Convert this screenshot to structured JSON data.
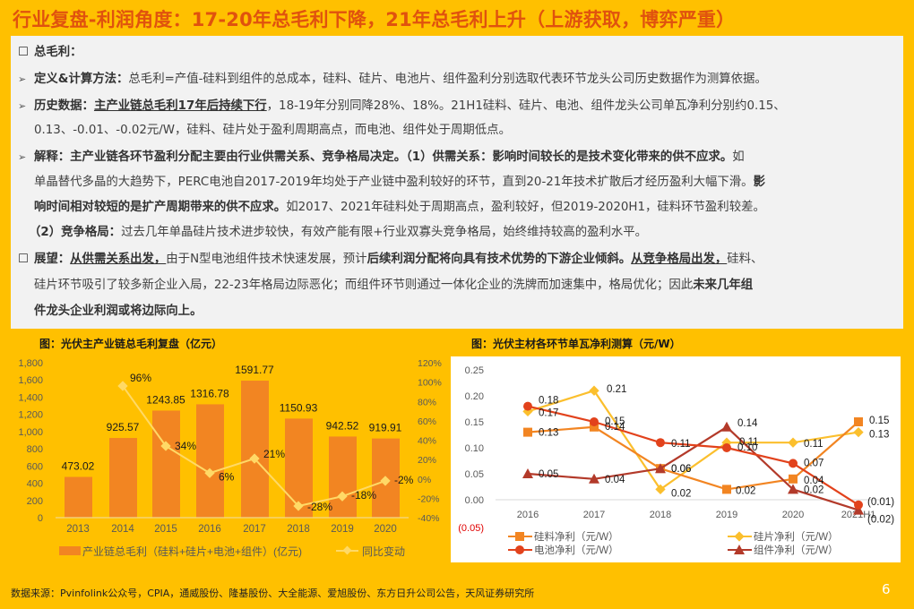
{
  "title": "行业复盘-利润角度：17-20年总毛利下降，21年总毛利上升（上游获取，博弈严重）",
  "panel": {
    "heading_mark": "☐",
    "heading": "总毛利：",
    "p1": {
      "label": "定义&计算方法：",
      "text": "总毛利=产值-硅料到组件的总成本，硅料、硅片、电池片、组件盈利分别选取代表环节龙头公司历史数据作为测算依据。"
    },
    "p2": {
      "label": "历史数据：",
      "underline": "主产业链总毛利17年后持续下行",
      "text1": "，18-19年分别同降28%、18%。21H1硅料、硅片、电池、组件龙头公司单瓦净利分别约0.15、",
      "text2": "0.13、-0.01、-0.02元/W，硅料、硅片处于盈利周期高点，而电池、组件处于周期低点。"
    },
    "p3": {
      "label": "解释：主产业链各环节盈利分配主要由行业供需关系、竞争格局决定。（1）供需关系：影响时间较长的是技术变化带来的供不应求。",
      "t1": "如",
      "line2": "单晶替代多晶的大趋势下，PERC电池自2017-2019年均处于产业链中盈利较好的环节，直到20-21年技术扩散后才经历盈利大幅下滑。",
      "line2b": "影",
      "line3b": "响时间相对较短的是扩产周期带来的供不应求。",
      "line3": "如2017、2021年硅料处于周期高点，盈利较好，但2019-2020H1，硅料环节盈利较差。",
      "line4b": "（2）竞争格局：",
      "line4": "过去几年单晶硅片技术进步较快，有效产能有限+行业双寡头竞争格局，始终维持较高的盈利水平。"
    },
    "p4": {
      "label": "展望：",
      "u1": "从供需关系出发，",
      "t1": "由于N型电池组件技术快速发展，预计",
      "b1": "后续利润分配将向具有技术优势的下游企业倾斜。",
      "u2": "从竞争格局出发，",
      "t2": "硅料、",
      "line2": "硅片环节吸引了较多新企业入局，22-23年格局边际恶化；而组件环节则通过一体化企业的洗牌而加速集中，格局优化；因此",
      "b2": "未来几年组",
      "line3": "件龙头企业利润或将边际向上。"
    }
  },
  "chart_left_title": "图：光伏主产业链总毛利复盘（亿元）",
  "chart_right_title": "图：光伏主材各环节单瓦净利测算（元/W）",
  "chart_data": [
    {
      "type": "bar",
      "title": "图：光伏主产业链总毛利复盘（亿元）",
      "categories": [
        "2013",
        "2014",
        "2015",
        "2016",
        "2017",
        "2018",
        "2019",
        "2020"
      ],
      "series": [
        {
          "name": "产业链总毛利（硅料+硅片+电池+组件）(亿元)",
          "type": "bar",
          "axis": "left",
          "color": "#F28522",
          "values": [
            473.02,
            925.57,
            1243.85,
            1316.78,
            1591.77,
            1150.93,
            942.52,
            919.91
          ],
          "labels": [
            "473.02",
            "925.57",
            "1243.85",
            "1316.78",
            "1591.77",
            "1150.93",
            "942.52",
            "919.91"
          ]
        },
        {
          "name": "同比变动",
          "type": "line",
          "axis": "right",
          "color": "#FFD966",
          "values": [
            null,
            96,
            34,
            6,
            21,
            -28,
            -18,
            -2
          ],
          "labels": [
            "",
            "96%",
            "34%",
            "6%",
            "21%",
            "-28%",
            "-18%",
            "-2%"
          ]
        }
      ],
      "y_left": {
        "min": 0,
        "max": 1800,
        "ticks": [
          "0",
          "200",
          "400",
          "600",
          "800",
          "1,000",
          "1,200",
          "1,400",
          "1,600",
          "1,800"
        ]
      },
      "y_right": {
        "min": -40,
        "max": 120,
        "ticks": [
          "-40%",
          "-20%",
          "0%",
          "20%",
          "40%",
          "60%",
          "80%",
          "100%",
          "120%"
        ]
      },
      "legend": [
        "产业链总毛利（硅料+硅片+电池+组件）(亿元)",
        "同比变动"
      ],
      "legend_position": "bottom",
      "grid": false
    },
    {
      "type": "line",
      "title": "图：光伏主材各环节单瓦净利测算（元/W）",
      "categories": [
        "2016",
        "2017",
        "2018",
        "2019",
        "2020",
        "2021H1"
      ],
      "series": [
        {
          "name": "硅料净利（元/W）",
          "marker": "square",
          "color": "#F28522",
          "values": [
            0.13,
            0.14,
            0.06,
            0.02,
            0.04,
            0.15
          ],
          "labels": [
            "0.13",
            "0.14",
            "0.06",
            "0.02",
            "0.04",
            "0.15"
          ]
        },
        {
          "name": "硅片净利（元/W）",
          "marker": "diamond",
          "color": "#FBBF2D",
          "values": [
            0.17,
            0.21,
            0.02,
            0.11,
            0.11,
            0.13
          ],
          "labels": [
            "0.17",
            "0.21",
            "0.02",
            "0.11",
            "0.11",
            "0.13"
          ]
        },
        {
          "name": "电池净利（元/W）",
          "marker": "circle",
          "color": "#E2421C",
          "values": [
            0.18,
            0.15,
            0.11,
            0.1,
            0.07,
            -0.01
          ],
          "labels": [
            "0.18",
            "0.15",
            "0.11",
            "0.10",
            "0.07",
            "(0.01)"
          ]
        },
        {
          "name": "组件净利（元/W）",
          "marker": "triangle",
          "color": "#B33A2A",
          "values": [
            0.05,
            0.04,
            0.06,
            0.14,
            0.02,
            -0.02
          ],
          "labels": [
            "0.05",
            "0.04",
            "0.06",
            "0.14",
            "0.02",
            "(0.02)"
          ]
        }
      ],
      "y": {
        "min": -0.05,
        "max": 0.25,
        "ticks": [
          "(0.05)",
          "0.00",
          "0.05",
          "0.10",
          "0.15",
          "0.20",
          "0.25"
        ]
      },
      "legend": [
        "硅料净利（元/W）",
        "硅片净利（元/W）",
        "电池净利（元/W）",
        "组件净利（元/W）"
      ],
      "legend_position": "bottom",
      "grid": false
    }
  ],
  "source": "数据来源：Pvinfolink公众号，CPIA，通威股份、隆基股份、大全能源、爱旭股份、东方日升公司公告，天风证券研究所",
  "page_number": "6"
}
